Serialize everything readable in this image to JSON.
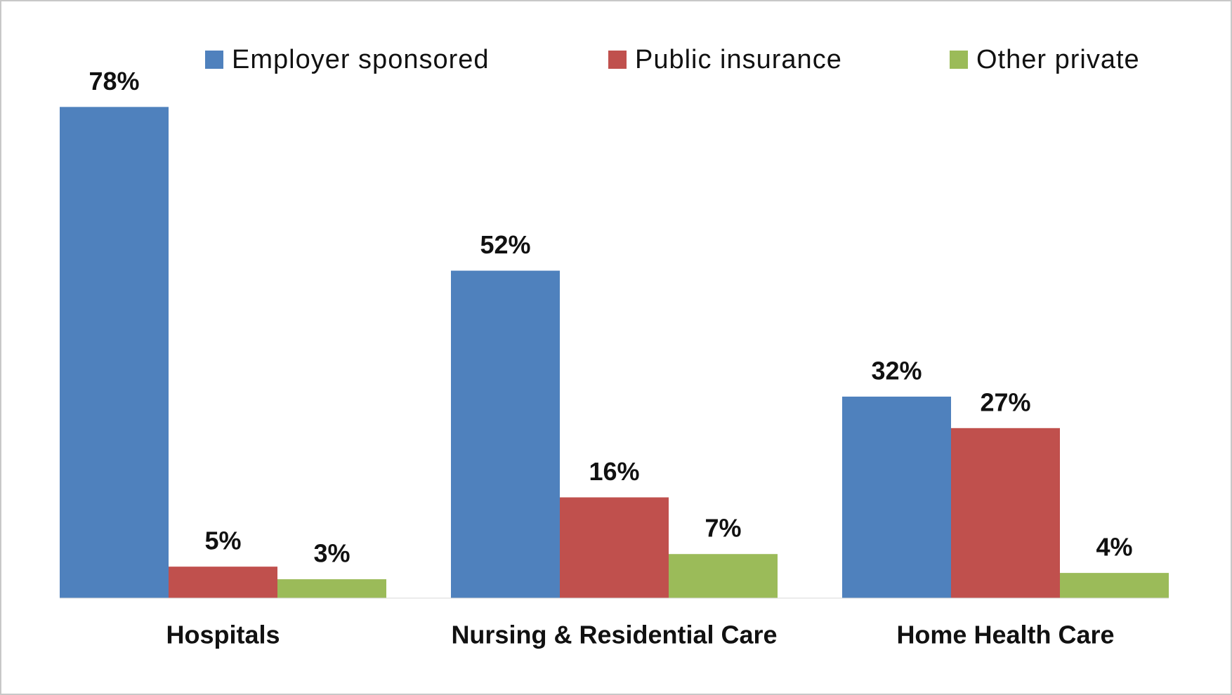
{
  "chart_data": {
    "type": "bar",
    "categories": [
      "Hospitals",
      "Nursing & Residential Care",
      "Home Health Care"
    ],
    "series": [
      {
        "name": "Employer sponsored",
        "color": "#4f81bd",
        "values": [
          78,
          52,
          32
        ],
        "value_labels": [
          "78%",
          "52%",
          "32%"
        ]
      },
      {
        "name": "Public insurance",
        "color": "#c0504d",
        "values": [
          5,
          16,
          27
        ],
        "value_labels": [
          "5%",
          "16%",
          "27%"
        ]
      },
      {
        "name": "Other private",
        "color": "#9bbb59",
        "values": [
          3,
          7,
          4
        ],
        "value_labels": [
          "3%",
          "7%",
          "4%"
        ]
      }
    ],
    "legend": "top"
  }
}
